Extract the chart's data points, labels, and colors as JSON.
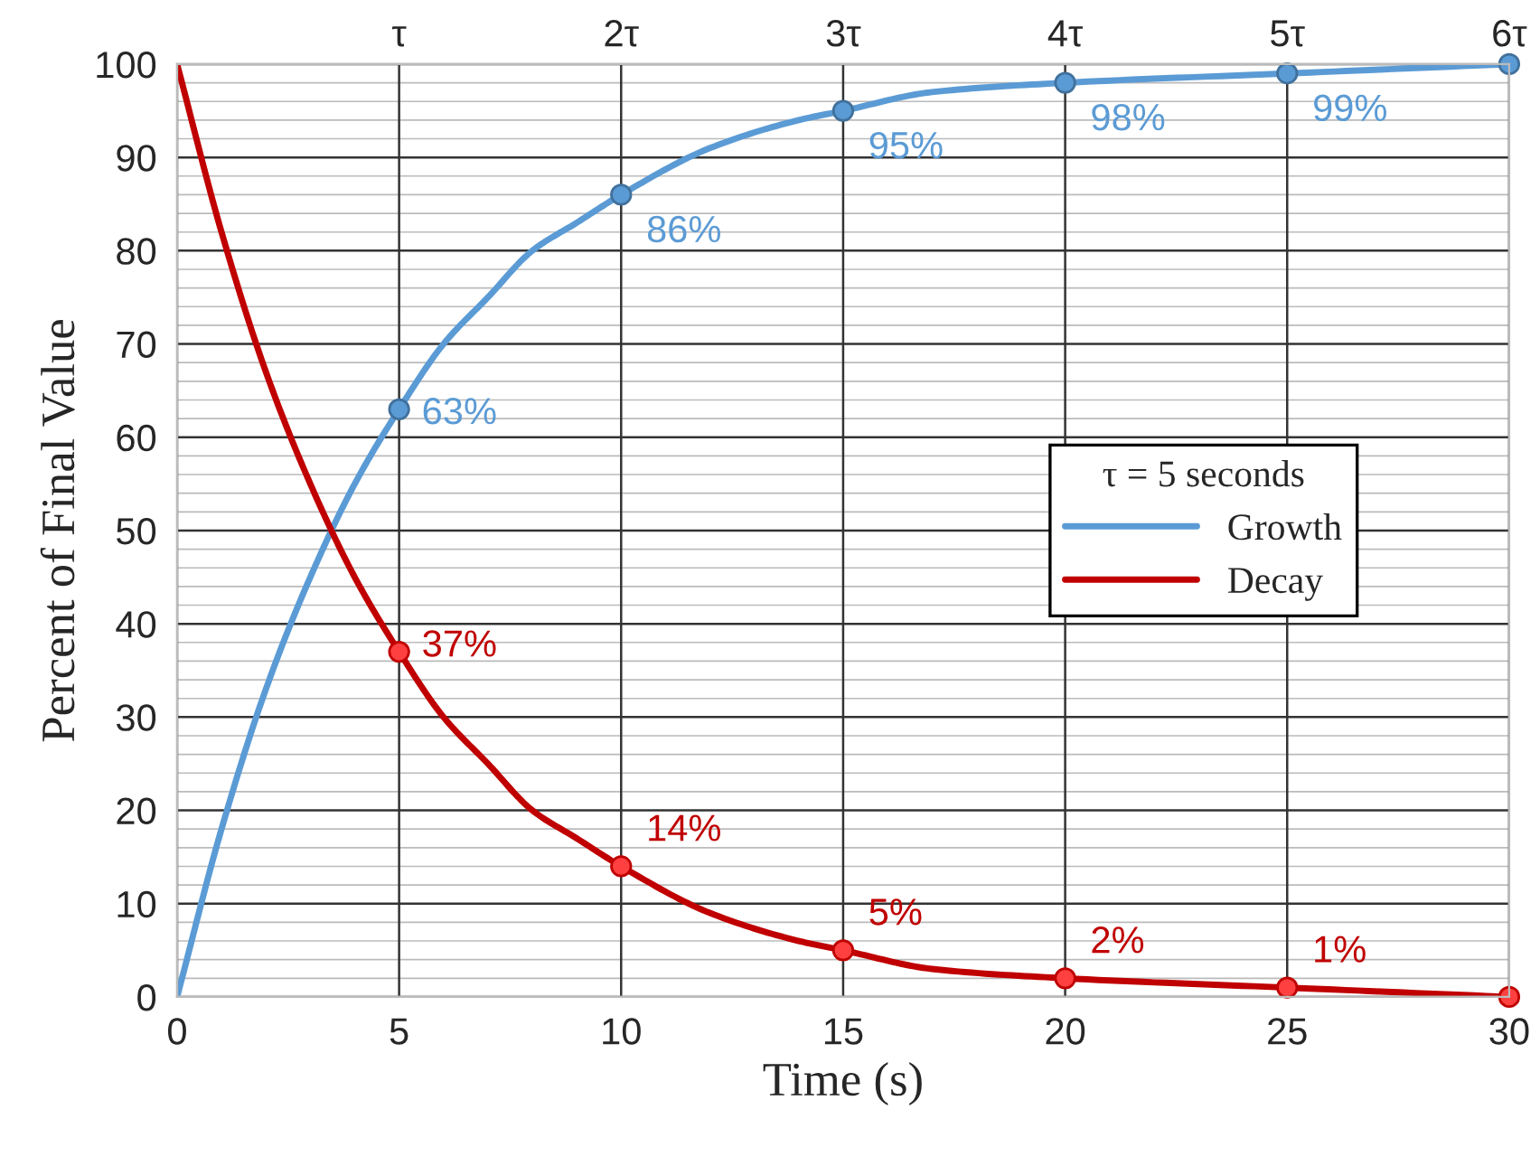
{
  "chart_data": {
    "type": "line",
    "xlabel": "Time (s)",
    "ylabel": "Percent of Final Value",
    "legend_title": "τ = 5 seconds",
    "legend": "right",
    "xlim": [
      0,
      30
    ],
    "xticks": [
      0,
      5,
      10,
      15,
      20,
      25,
      30
    ],
    "x2lim": [
      0,
      6
    ],
    "x2ticks": [
      {
        "value": 1,
        "label": "τ"
      },
      {
        "value": 2,
        "label": "2τ"
      },
      {
        "value": 3,
        "label": "3τ"
      },
      {
        "value": 4,
        "label": "4τ"
      },
      {
        "value": 5,
        "label": "5τ"
      },
      {
        "value": 6,
        "label": "6τ"
      }
    ],
    "ylim": [
      0,
      100
    ],
    "yticks": [
      0,
      {
        "value": 2,
        "label": null
      },
      {
        "value": 4,
        "label": null
      },
      {
        "value": 6,
        "label": null
      },
      {
        "value": 8,
        "label": null
      },
      10,
      {
        "value": 12,
        "label": null
      },
      {
        "value": 14,
        "label": null
      },
      {
        "value": 16,
        "label": null
      },
      {
        "value": 18,
        "label": null
      },
      20,
      {
        "value": 22,
        "label": null
      },
      {
        "value": 24,
        "label": null
      },
      {
        "value": 26,
        "label": null
      },
      {
        "value": 28,
        "label": null
      },
      30,
      {
        "value": 32,
        "label": null
      },
      {
        "value": 34,
        "label": null
      },
      {
        "value": 36,
        "label": null
      },
      {
        "value": 38,
        "label": null
      },
      40,
      {
        "value": 42,
        "label": null
      },
      {
        "value": 44,
        "label": null
      },
      {
        "value": 46,
        "label": null
      },
      {
        "value": 48,
        "label": null
      },
      50,
      {
        "value": 52,
        "label": null
      },
      {
        "value": 54,
        "label": null
      },
      {
        "value": 56,
        "label": null
      },
      {
        "value": 58,
        "label": null
      },
      60,
      {
        "value": 62,
        "label": null
      },
      {
        "value": 64,
        "label": null
      },
      {
        "value": 66,
        "label": null
      },
      {
        "value": 68,
        "label": null
      },
      70,
      {
        "value": 72,
        "label": null
      },
      {
        "value": 74,
        "label": null
      },
      {
        "value": 76,
        "label": null
      },
      {
        "value": 78,
        "label": null
      },
      80,
      {
        "value": 82,
        "label": null
      },
      {
        "value": 84,
        "label": null
      },
      {
        "value": 86,
        "label": null
      },
      {
        "value": 88,
        "label": null
      },
      90,
      {
        "value": 92,
        "label": null
      },
      {
        "value": 94,
        "label": null
      },
      {
        "value": 96,
        "label": null
      },
      {
        "value": 98,
        "label": null
      },
      100
    ],
    "grid": true,
    "marker": "none",
    "line_style": "solid",
    "series": [
      {
        "name": "Growth",
        "color": "#5b9bd5",
        "x": [
          0,
          1,
          2,
          3,
          4,
          5,
          6,
          7,
          8,
          9,
          10,
          12,
          14,
          15,
          17,
          20,
          25,
          30
        ],
        "values": [
          0,
          18,
          33,
          45,
          55,
          63,
          70,
          75,
          80,
          83,
          86,
          91,
          94,
          95,
          97,
          98,
          99,
          100
        ]
      },
      {
        "name": "Decay",
        "color": "#c00000",
        "x": [
          0,
          1,
          2,
          3,
          4,
          5,
          6,
          7,
          8,
          9,
          10,
          12,
          14,
          15,
          17,
          20,
          25,
          30
        ],
        "values": [
          100,
          82,
          67,
          55,
          45,
          37,
          30,
          25,
          20,
          17,
          14,
          9,
          6,
          5,
          3,
          2,
          1,
          0
        ]
      },
      {
        "color": "#5b9bd5",
        "type": "scatter",
        "marker": "circle",
        "x": [
          5,
          10,
          15,
          20,
          25,
          30
        ],
        "values": [
          63,
          86,
          95,
          98,
          99,
          100
        ],
        "value_labels": [
          "63%",
          "86%",
          "95%",
          "98%",
          "99%",
          null
        ]
      },
      {
        "color": "#ff4040",
        "type": "scatter",
        "marker": "circle",
        "x": [
          5,
          10,
          15,
          20,
          25,
          30
        ],
        "values": [
          37,
          14,
          5,
          2,
          1,
          0
        ],
        "value_labels": [
          "37%",
          "14%",
          "5%",
          "2%",
          "1%",
          null
        ]
      }
    ]
  }
}
